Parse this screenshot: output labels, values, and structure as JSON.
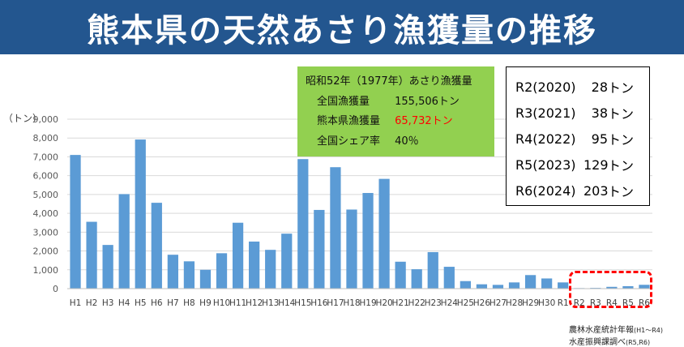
{
  "title": "熊本県の天然あさり漁獲量の推移",
  "unit": "（トン）",
  "info_box": {
    "heading": "昭和52年（1977年）あさり漁獲量",
    "rows": [
      {
        "label": "全国漁獲量",
        "value": "155,506トン"
      },
      {
        "label": "熊本県漁獲量",
        "value": "65,732トン"
      },
      {
        "label": "全国シェア率",
        "value": "40％"
      }
    ]
  },
  "recent_box": [
    {
      "year": "R2(2020)",
      "value": "28",
      "unit": "トン"
    },
    {
      "year": "R3(2021)",
      "value": "38",
      "unit": "トン"
    },
    {
      "year": "R4(2022)",
      "value": "95",
      "unit": "トン"
    },
    {
      "year": "R5(2023)",
      "value": "129",
      "unit": "トン"
    },
    {
      "year": "R6(2024)",
      "value": "203",
      "unit": "トン"
    }
  ],
  "sources": [
    {
      "text": "農林水産統計年報",
      "paren": "(H1～R4)"
    },
    {
      "text": "水産振興課調べ",
      "paren": "(R5,R6)"
    }
  ],
  "colors": {
    "title_bg": "#23568f",
    "bar": "#5b9bd5",
    "info_bg": "#92d050",
    "highlight": "#ff0000"
  },
  "chart_data": {
    "type": "bar",
    "categories": [
      "H1",
      "H2",
      "H3",
      "H4",
      "H5",
      "H6",
      "H7",
      "H8",
      "H9",
      "H10",
      "H11",
      "H12",
      "H13",
      "H14",
      "H15",
      "H16",
      "H17",
      "H18",
      "H19",
      "H20",
      "H21",
      "H22",
      "H23",
      "H24",
      "H25",
      "H26",
      "H27",
      "H28",
      "H29",
      "H30",
      "R1",
      "R2",
      "R3",
      "R4",
      "R5",
      "R6"
    ],
    "values": [
      7100,
      3550,
      2320,
      5020,
      7920,
      4560,
      1800,
      1450,
      1000,
      1880,
      3500,
      2500,
      2060,
      2920,
      6880,
      4180,
      6450,
      4200,
      5080,
      5830,
      1430,
      1030,
      1940,
      1160,
      400,
      230,
      200,
      330,
      720,
      540,
      330,
      28,
      38,
      95,
      129,
      203
    ],
    "ylim": [
      0,
      9000
    ],
    "yticks": [
      0,
      1000,
      2000,
      3000,
      4000,
      5000,
      6000,
      7000,
      8000,
      9000
    ],
    "ylabel": "（トン）",
    "grid": true,
    "legend": "none"
  }
}
